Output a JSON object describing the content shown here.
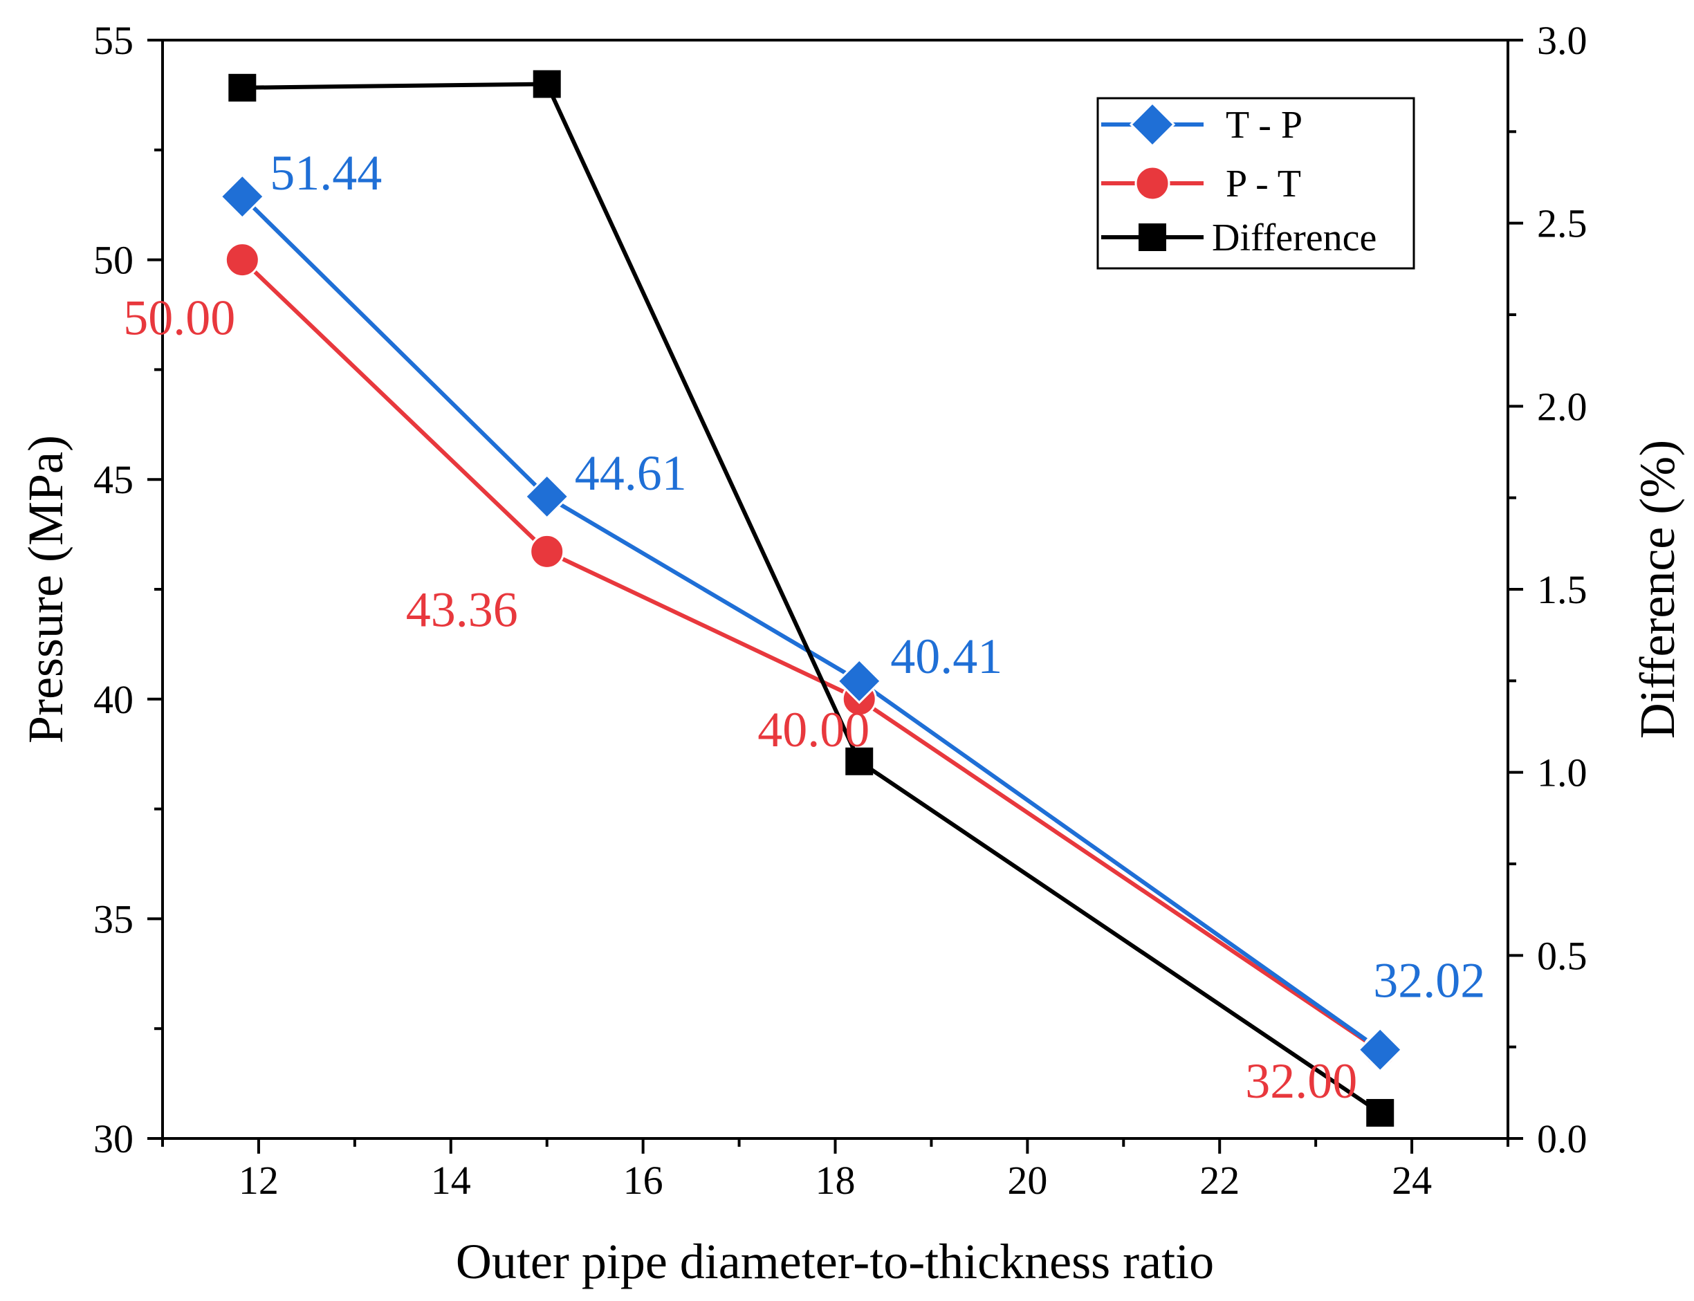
{
  "chart_data": {
    "type": "line",
    "title": "",
    "xlabel": "Outer pipe diameter-to-thickness ratio",
    "ylabel_left": "Pressure (MPa)",
    "ylabel_right": "Difference (%)",
    "xlim": [
      11,
      25
    ],
    "xticks": [
      "12",
      "14",
      "16",
      "18",
      "20",
      "22",
      "24"
    ],
    "ylim_left": [
      30,
      55
    ],
    "yticks_left": [
      "30",
      "35",
      "40",
      "45",
      "50",
      "55"
    ],
    "ylim_right": [
      0.0,
      3.0
    ],
    "yticks_right": [
      "0.0",
      "0.5",
      "1.0",
      "1.5",
      "2.0",
      "2.5",
      "3.0"
    ],
    "grid": false,
    "legend_position": "top-right",
    "x": [
      11.83,
      15.0,
      18.25,
      23.67
    ],
    "series": [
      {
        "name": "T - P",
        "axis": "left",
        "color": "#1f6fd6",
        "marker": "diamond",
        "values": [
          51.44,
          44.61,
          40.41,
          32.02
        ],
        "labels": [
          "51.44",
          "44.61",
          "40.41",
          "32.02"
        ]
      },
      {
        "name": "P - T",
        "axis": "left",
        "color": "#e8383d",
        "marker": "circle",
        "values": [
          50.0,
          43.36,
          40.0,
          32.0
        ],
        "labels": [
          "50.00",
          "43.36",
          "40.00",
          "32.00"
        ]
      },
      {
        "name": "Difference",
        "axis": "right",
        "color": "#000000",
        "marker": "square",
        "values": [
          2.87,
          2.88,
          1.03,
          0.07
        ],
        "labels": []
      }
    ]
  }
}
